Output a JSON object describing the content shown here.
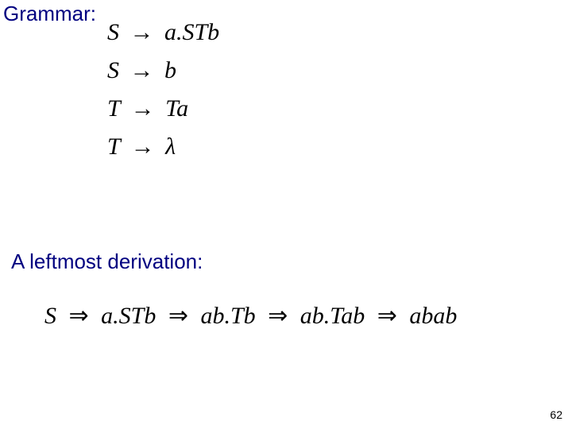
{
  "page_number": "62",
  "headings": {
    "grammar": "Grammar:",
    "derivation": "A leftmost derivation:"
  },
  "colors": {
    "heading_color": "#000080",
    "math_color": "#000000",
    "page_bg": "#ffffff"
  },
  "fonts": {
    "heading_family": "Comic Sans MS",
    "heading_size_pt": 20,
    "math_family": "Times New Roman",
    "math_size_pt": 22,
    "math_style": "italic"
  },
  "grammar_rules": [
    {
      "lhs": "S",
      "rhs": "a.STb"
    },
    {
      "lhs": "S",
      "rhs": "b"
    },
    {
      "lhs": "T",
      "rhs": "Ta"
    },
    {
      "lhs": "T",
      "rhs": "λ"
    }
  ],
  "arrow_symbol": "→",
  "double_arrow_symbol": "⇒",
  "derivation_steps": [
    "S",
    "a.STb",
    "ab.Tb",
    "ab.Tab",
    "abab"
  ]
}
